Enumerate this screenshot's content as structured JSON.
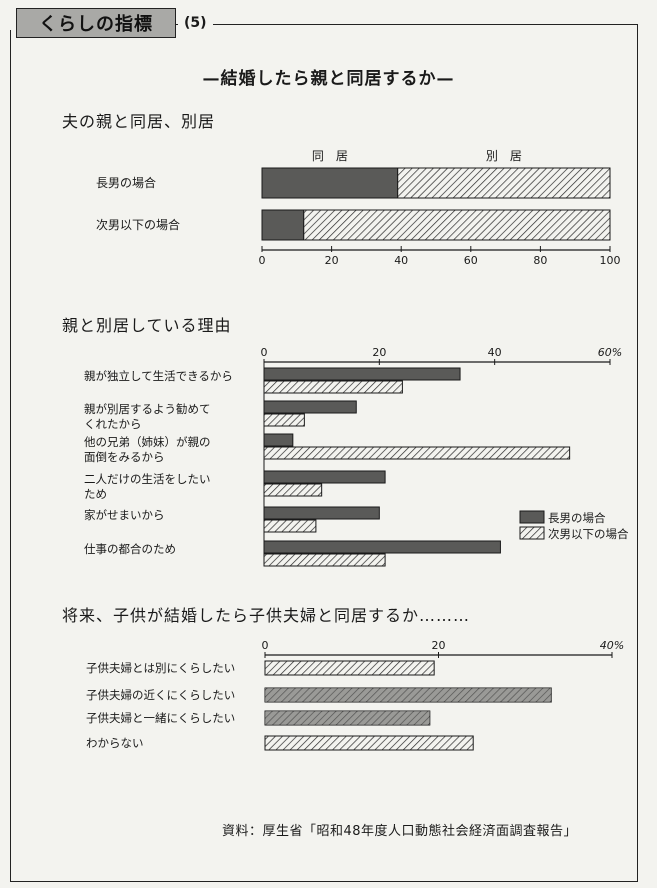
{
  "header": {
    "tab_label": "くらしの指標",
    "number": "(5)"
  },
  "title": "—結婚したら親と同居するか—",
  "source": "資料：厚生省「昭和48年度人口動態社会経済面調査報告」",
  "colors": {
    "dark": "#5a5a58",
    "hatch": "#2a2a2a",
    "background": "#f3f3ef"
  },
  "chart_data": [
    {
      "type": "bar",
      "orientation": "horizontal-stacked",
      "title": "夫の親と同居、別居",
      "categories": [
        "長男の場合",
        "次男以下の場合"
      ],
      "series": [
        {
          "name": "同　居",
          "values": [
            39,
            12
          ],
          "pattern": "dark"
        },
        {
          "name": "別　居",
          "values": [
            61,
            88
          ],
          "pattern": "hatched"
        }
      ],
      "xlim": [
        0,
        100
      ],
      "ticks": [
        "0",
        "20",
        "40",
        "60",
        "80",
        "100"
      ]
    },
    {
      "type": "bar",
      "orientation": "horizontal-grouped",
      "title": "親と別居している理由",
      "categories": [
        "親が独立して生活できるから",
        "親が別居するよう勧めて\nくれたから",
        "他の兄弟（姉妹）が親の\n面倒をみるから",
        "二人だけの生活をしたい\nため",
        "家がせまいから",
        "仕事の都合のため"
      ],
      "series": [
        {
          "name": "長男の場合",
          "values": [
            34,
            16,
            5,
            21,
            20,
            41
          ],
          "pattern": "dark"
        },
        {
          "name": "次男以下の場合",
          "values": [
            24,
            7,
            53,
            10,
            9,
            21
          ],
          "pattern": "hatched"
        }
      ],
      "xlim": [
        0,
        60
      ],
      "ticks": [
        "0",
        "20",
        "40",
        "60%"
      ],
      "legend": "right"
    },
    {
      "type": "bar",
      "orientation": "horizontal",
      "title": "将来、子供が結婚したら子供夫婦と同居するか………",
      "categories": [
        "子供夫婦とは別にくらしたい",
        "子供夫婦の近くにくらしたい",
        "子供夫婦と一緒にくらしたい",
        "わからない"
      ],
      "values": [
        19.5,
        33,
        19,
        24
      ],
      "xlim": [
        0,
        40
      ],
      "ticks": [
        "0",
        "20",
        "40%"
      ]
    }
  ]
}
